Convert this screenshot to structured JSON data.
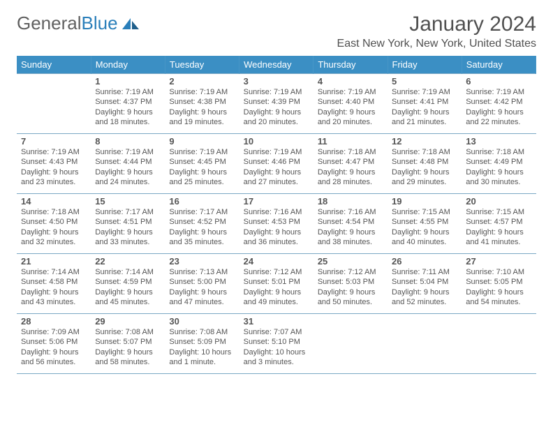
{
  "logo": {
    "text_gray": "General",
    "text_blue": "Blue"
  },
  "title": "January 2024",
  "location": "East New York, New York, United States",
  "day_headers": [
    "Sunday",
    "Monday",
    "Tuesday",
    "Wednesday",
    "Thursday",
    "Friday",
    "Saturday"
  ],
  "header_bg": "#3b8fc4",
  "header_fg": "#ffffff",
  "border_color": "#7aa8c4",
  "text_color": "#555555",
  "font_family": "Arial",
  "day_fontsize": 13,
  "info_fontsize": 11,
  "weeks": [
    [
      null,
      {
        "d": "1",
        "sunrise": "7:19 AM",
        "sunset": "4:37 PM",
        "daylight": "9 hours and 18 minutes."
      },
      {
        "d": "2",
        "sunrise": "7:19 AM",
        "sunset": "4:38 PM",
        "daylight": "9 hours and 19 minutes."
      },
      {
        "d": "3",
        "sunrise": "7:19 AM",
        "sunset": "4:39 PM",
        "daylight": "9 hours and 20 minutes."
      },
      {
        "d": "4",
        "sunrise": "7:19 AM",
        "sunset": "4:40 PM",
        "daylight": "9 hours and 20 minutes."
      },
      {
        "d": "5",
        "sunrise": "7:19 AM",
        "sunset": "4:41 PM",
        "daylight": "9 hours and 21 minutes."
      },
      {
        "d": "6",
        "sunrise": "7:19 AM",
        "sunset": "4:42 PM",
        "daylight": "9 hours and 22 minutes."
      }
    ],
    [
      {
        "d": "7",
        "sunrise": "7:19 AM",
        "sunset": "4:43 PM",
        "daylight": "9 hours and 23 minutes."
      },
      {
        "d": "8",
        "sunrise": "7:19 AM",
        "sunset": "4:44 PM",
        "daylight": "9 hours and 24 minutes."
      },
      {
        "d": "9",
        "sunrise": "7:19 AM",
        "sunset": "4:45 PM",
        "daylight": "9 hours and 25 minutes."
      },
      {
        "d": "10",
        "sunrise": "7:19 AM",
        "sunset": "4:46 PM",
        "daylight": "9 hours and 27 minutes."
      },
      {
        "d": "11",
        "sunrise": "7:18 AM",
        "sunset": "4:47 PM",
        "daylight": "9 hours and 28 minutes."
      },
      {
        "d": "12",
        "sunrise": "7:18 AM",
        "sunset": "4:48 PM",
        "daylight": "9 hours and 29 minutes."
      },
      {
        "d": "13",
        "sunrise": "7:18 AM",
        "sunset": "4:49 PM",
        "daylight": "9 hours and 30 minutes."
      }
    ],
    [
      {
        "d": "14",
        "sunrise": "7:18 AM",
        "sunset": "4:50 PM",
        "daylight": "9 hours and 32 minutes."
      },
      {
        "d": "15",
        "sunrise": "7:17 AM",
        "sunset": "4:51 PM",
        "daylight": "9 hours and 33 minutes."
      },
      {
        "d": "16",
        "sunrise": "7:17 AM",
        "sunset": "4:52 PM",
        "daylight": "9 hours and 35 minutes."
      },
      {
        "d": "17",
        "sunrise": "7:16 AM",
        "sunset": "4:53 PM",
        "daylight": "9 hours and 36 minutes."
      },
      {
        "d": "18",
        "sunrise": "7:16 AM",
        "sunset": "4:54 PM",
        "daylight": "9 hours and 38 minutes."
      },
      {
        "d": "19",
        "sunrise": "7:15 AM",
        "sunset": "4:55 PM",
        "daylight": "9 hours and 40 minutes."
      },
      {
        "d": "20",
        "sunrise": "7:15 AM",
        "sunset": "4:57 PM",
        "daylight": "9 hours and 41 minutes."
      }
    ],
    [
      {
        "d": "21",
        "sunrise": "7:14 AM",
        "sunset": "4:58 PM",
        "daylight": "9 hours and 43 minutes."
      },
      {
        "d": "22",
        "sunrise": "7:14 AM",
        "sunset": "4:59 PM",
        "daylight": "9 hours and 45 minutes."
      },
      {
        "d": "23",
        "sunrise": "7:13 AM",
        "sunset": "5:00 PM",
        "daylight": "9 hours and 47 minutes."
      },
      {
        "d": "24",
        "sunrise": "7:12 AM",
        "sunset": "5:01 PM",
        "daylight": "9 hours and 49 minutes."
      },
      {
        "d": "25",
        "sunrise": "7:12 AM",
        "sunset": "5:03 PM",
        "daylight": "9 hours and 50 minutes."
      },
      {
        "d": "26",
        "sunrise": "7:11 AM",
        "sunset": "5:04 PM",
        "daylight": "9 hours and 52 minutes."
      },
      {
        "d": "27",
        "sunrise": "7:10 AM",
        "sunset": "5:05 PM",
        "daylight": "9 hours and 54 minutes."
      }
    ],
    [
      {
        "d": "28",
        "sunrise": "7:09 AM",
        "sunset": "5:06 PM",
        "daylight": "9 hours and 56 minutes."
      },
      {
        "d": "29",
        "sunrise": "7:08 AM",
        "sunset": "5:07 PM",
        "daylight": "9 hours and 58 minutes."
      },
      {
        "d": "30",
        "sunrise": "7:08 AM",
        "sunset": "5:09 PM",
        "daylight": "10 hours and 1 minute."
      },
      {
        "d": "31",
        "sunrise": "7:07 AM",
        "sunset": "5:10 PM",
        "daylight": "10 hours and 3 minutes."
      },
      null,
      null,
      null
    ]
  ],
  "labels": {
    "sunrise": "Sunrise:",
    "sunset": "Sunset:",
    "daylight": "Daylight:"
  }
}
